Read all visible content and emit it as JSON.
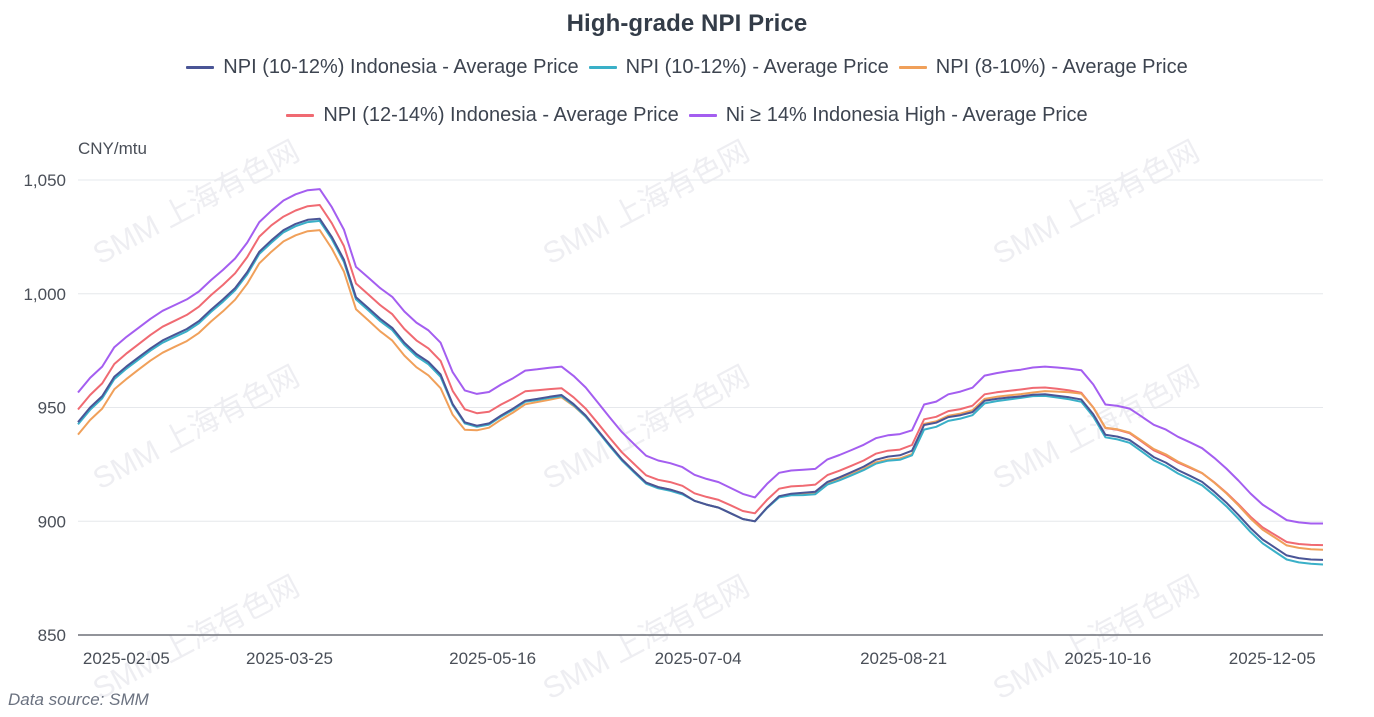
{
  "chart_data": {
    "type": "line",
    "title": "High-grade NPI Price",
    "ylabel": "CNY/mtu",
    "xlabel": "",
    "ylim": [
      850,
      1050
    ],
    "y_ticks": [
      {
        "value": 1050,
        "label": "1,050"
      },
      {
        "value": 1000,
        "label": "1,000"
      },
      {
        "value": 950,
        "label": "950"
      },
      {
        "value": 900,
        "label": "900"
      },
      {
        "value": 850,
        "label": "850"
      }
    ],
    "x_count": 104,
    "x_ticks": [
      {
        "label": "2025-02-05",
        "index": 4
      },
      {
        "label": "2025-03-25",
        "index": 17.5
      },
      {
        "label": "2025-05-16",
        "index": 34.3
      },
      {
        "label": "2025-07-04",
        "index": 51.3
      },
      {
        "label": "2025-08-21",
        "index": 68.3
      },
      {
        "label": "2025-10-16",
        "index": 85.2
      },
      {
        "label": "2025-12-05",
        "index": 98.8
      }
    ],
    "grid": true,
    "legend_position": "top-center",
    "source": "Data source:  SMM",
    "watermark": "SMM 上海有色网",
    "series": [
      {
        "name": "NPI (10-12%) Indonesia - Average Price",
        "color": "#4a5596",
        "values": [
          943.6,
          950,
          955,
          963.5,
          968,
          972,
          976,
          979.5,
          982,
          984.5,
          988,
          993,
          997.5,
          1002.5,
          1009.5,
          1018.5,
          1023.5,
          1028,
          1030.7,
          1032.5,
          1033,
          1025,
          1015,
          998.5,
          993.8,
          989,
          985,
          978.5,
          973.5,
          970,
          964.5,
          951.5,
          943.5,
          942,
          943,
          946.5,
          949.5,
          953,
          953.8,
          954.7,
          955.5,
          951.5,
          946.5,
          940,
          933.5,
          927.2,
          922,
          917,
          915,
          913.9,
          912.3,
          909,
          907.3,
          906,
          903.5,
          901,
          900,
          906,
          911,
          912.1,
          912.5,
          913,
          917.3,
          919.3,
          921.6,
          924,
          927,
          928.4,
          929,
          931,
          942.3,
          943.3,
          945.8,
          946.6,
          948,
          953,
          953.8,
          954.4,
          954.9,
          955.6,
          955.8,
          955.2,
          954.5,
          953.5,
          947,
          938,
          937.2,
          935.7,
          932,
          928.2,
          925.8,
          922.5,
          920,
          917.3,
          913,
          908.2,
          902.8,
          897,
          892,
          888.5,
          885,
          883.8,
          883.2,
          883
        ]
      },
      {
        "name": "NPI (10-12%) - Average Price",
        "color": "#3ab0c8",
        "values": [
          942.6,
          949,
          954,
          962.5,
          967,
          971,
          975,
          978.5,
          981,
          983.5,
          987,
          992,
          996.5,
          1001.5,
          1008.5,
          1017.5,
          1022.5,
          1027,
          1029.7,
          1031.5,
          1032,
          1024,
          1014,
          997.5,
          992.8,
          988,
          984,
          977.5,
          972.5,
          969,
          963.5,
          951,
          943,
          941.5,
          942.5,
          946,
          949,
          952.5,
          953.3,
          954.2,
          955,
          951,
          946,
          939.5,
          933,
          926.7,
          921.5,
          916.5,
          914.5,
          913.4,
          911.8,
          909,
          907.3,
          906,
          903.5,
          901,
          900,
          905.8,
          910.5,
          911.4,
          911.5,
          911.9,
          916.1,
          918,
          920.2,
          922.5,
          925.3,
          926.6,
          927,
          929,
          940.3,
          941.5,
          944.1,
          945.1,
          946.6,
          951.8,
          952.8,
          953.5,
          954.2,
          955,
          955.1,
          954.4,
          953.6,
          952.5,
          946,
          936.9,
          936,
          934.5,
          930.7,
          926.8,
          924.3,
          921,
          918.5,
          915.8,
          911.4,
          906.6,
          901.1,
          895.3,
          890.3,
          886.7,
          883.2,
          881.9,
          881.3,
          881
        ]
      },
      {
        "name": "NPI (8-10%) - Average Price",
        "color": "#f0a05a",
        "values": [
          938.1,
          944.5,
          949.5,
          958,
          962.5,
          966.6,
          970.6,
          974.1,
          976.7,
          979.2,
          982.8,
          987.8,
          992.3,
          997.4,
          1004.4,
          1013.4,
          1018.5,
          1023,
          1025.7,
          1027.5,
          1028,
          1019.9,
          1009.8,
          993.2,
          988.4,
          983.5,
          979.4,
          972.8,
          967.7,
          964.1,
          958.5,
          946.8,
          940.2,
          940,
          941.1,
          944.7,
          947.8,
          951.4,
          952.4,
          953.4,
          954.5,
          950.7,
          945.9,
          939.7,
          933.5,
          927.2,
          922,
          917,
          915,
          913.9,
          912.3,
          909,
          907.3,
          906,
          903.5,
          901,
          900,
          905.9,
          910.8,
          911.8,
          912.1,
          912.4,
          916.6,
          918.5,
          920.7,
          923,
          925.9,
          927.1,
          927.6,
          929.5,
          942.8,
          943.9,
          946.4,
          947.3,
          948.8,
          953.8,
          954.7,
          955.3,
          955.9,
          956.6,
          957.2,
          957,
          956.7,
          956.1,
          950,
          941.1,
          940.4,
          939,
          935.4,
          931.7,
          929.4,
          926.2,
          923.8,
          921.2,
          917,
          912.3,
          907,
          901.2,
          896.3,
          892.9,
          889.4,
          888.3,
          887.7,
          887.5
        ]
      },
      {
        "name": "NPI (12-14%) Indonesia - Average Price",
        "color": "#f06a72",
        "values": [
          949.1,
          955.5,
          960.6,
          969.1,
          973.7,
          977.8,
          981.9,
          985.5,
          988.1,
          990.7,
          994.3,
          999.4,
          1003.9,
          1009,
          1016.1,
          1025.1,
          1030.1,
          1033.9,
          1036.6,
          1038.5,
          1039,
          1031,
          1021,
          1004.5,
          999.8,
          995,
          991,
          984.5,
          979.5,
          976,
          970.5,
          957.3,
          949.2,
          947.5,
          948.1,
          951.3,
          954,
          957.1,
          957.6,
          958.1,
          958.5,
          954.5,
          949.5,
          943.1,
          936.6,
          930.3,
          925.2,
          920.2,
          918.2,
          917.2,
          915.6,
          912.3,
          910.7,
          909.4,
          907,
          904.5,
          903.5,
          909.4,
          914.3,
          915.3,
          915.6,
          916.1,
          920.3,
          922.2,
          924.4,
          926.7,
          929.7,
          931,
          931.5,
          933.5,
          944.8,
          945.9,
          948.4,
          949.3,
          950.8,
          955.8,
          956.7,
          957.3,
          957.9,
          958.6,
          958.8,
          958.2,
          957.5,
          956.5,
          950,
          941,
          940.2,
          938.7,
          935,
          931.2,
          928.8,
          925.8,
          923.5,
          921.1,
          917.1,
          912.6,
          907.5,
          902,
          897.3,
          894.1,
          890.9,
          890,
          889.6,
          889.5
        ]
      },
      {
        "name": "Ni ≥ 14% Indonesia High - Average Price",
        "color": "#a45ef0",
        "values": [
          956.6,
          963,
          968,
          976.5,
          981,
          985,
          989,
          992.5,
          995,
          997.5,
          1001,
          1006,
          1010.5,
          1015.5,
          1022.5,
          1031.5,
          1036.5,
          1041,
          1043.7,
          1045.5,
          1046,
          1038.1,
          1028.2,
          1011.8,
          1007.2,
          1002.5,
          998.6,
          992.2,
          987.3,
          983.9,
          978.5,
          965.5,
          957.5,
          956,
          956.8,
          960.1,
          962.9,
          966.2,
          966.8,
          967.5,
          968,
          963.9,
          958.8,
          952.2,
          945.6,
          939.2,
          933.9,
          928.8,
          926.7,
          925.5,
          923.8,
          920.4,
          918.6,
          917.2,
          914.6,
          912,
          910.5,
          916.4,
          921.3,
          922.3,
          922.6,
          923,
          927.2,
          929.1,
          931.3,
          933.6,
          936.5,
          937.8,
          938.3,
          940,
          951.3,
          952.6,
          955.8,
          957,
          958.7,
          964,
          965.1,
          966,
          966.6,
          967.6,
          968,
          967.6,
          967.1,
          966.4,
          960.1,
          951.3,
          950.7,
          949.5,
          946,
          942.4,
          940.3,
          937.1,
          934.7,
          932.1,
          927.9,
          923.2,
          917.9,
          912.2,
          907.3,
          903.9,
          900.5,
          899.5,
          899,
          899
        ]
      }
    ]
  },
  "legend": {
    "row1": [
      0,
      1,
      2
    ],
    "row2": [
      3,
      4
    ]
  }
}
